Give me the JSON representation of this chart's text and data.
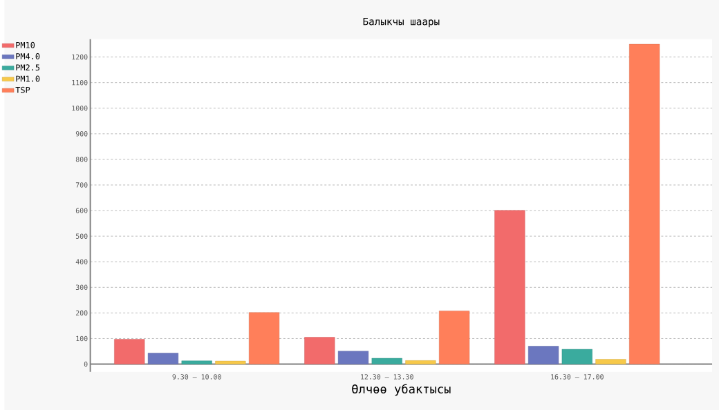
{
  "chart_data": {
    "type": "bar",
    "title": "Балыкчы шаары",
    "xlabel": "Өлчөө убактысы",
    "categories": [
      "9.30 — 10.00",
      "12.30 — 13.30",
      "16.30 — 17.00"
    ],
    "series": [
      {
        "name": "PM10",
        "color": "#f26b6b",
        "values": [
          97,
          105,
          601
        ]
      },
      {
        "name": "PM4.0",
        "color": "#6b77bf",
        "values": [
          43,
          51,
          70
        ]
      },
      {
        "name": "PM2.5",
        "color": "#3aab9e",
        "values": [
          13,
          23,
          58
        ]
      },
      {
        "name": "PM1.0",
        "color": "#f7c94a",
        "values": [
          12,
          14,
          19
        ]
      },
      {
        "name": "TSP",
        "color": "#ff7f5a",
        "values": [
          202,
          208,
          1250
        ]
      }
    ],
    "ylim": [
      -30,
      1270
    ],
    "yticks": [
      0,
      100,
      200,
      300,
      400,
      500,
      600,
      700,
      800,
      900,
      1000,
      1100,
      1200
    ],
    "grid": "y",
    "legend": "top left"
  }
}
